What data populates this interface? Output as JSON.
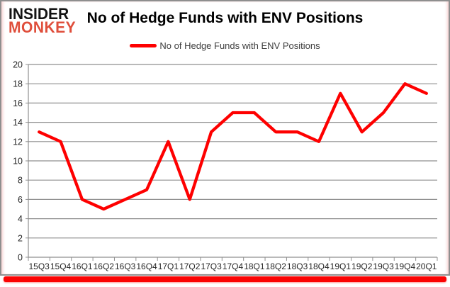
{
  "brand": {
    "line1": "INSIDER",
    "line2": "MONKEY"
  },
  "title": "No of Hedge Funds with ENV Positions",
  "legend": {
    "label": "No of Hedge Funds with ENV Positions",
    "color": "#fe0000"
  },
  "colors": {
    "line": "#fe0000",
    "grid": "#8f8f8f",
    "axis": "#8f8f8f",
    "tick_text": "#262626",
    "title_text": "#000000",
    "logo_black": "#141414",
    "logo_red": "#df4e3b",
    "bottom_bar": "#fb0303"
  },
  "chart_data": {
    "type": "line",
    "title": "No of Hedge Funds with ENV Positions",
    "categories": [
      "15Q3",
      "15Q4",
      "16Q1",
      "16Q2",
      "16Q3",
      "16Q4",
      "17Q1",
      "17Q2",
      "17Q3",
      "17Q4",
      "18Q1",
      "18Q2",
      "18Q3",
      "18Q4",
      "19Q1",
      "19Q2",
      "19Q3",
      "19Q4",
      "20Q1"
    ],
    "series": [
      {
        "name": "No of Hedge Funds with ENV Positions",
        "color": "#fe0000",
        "values": [
          13,
          12,
          6,
          5,
          6,
          7,
          12,
          6,
          13,
          15,
          15,
          13,
          13,
          12,
          17,
          13,
          15,
          18,
          17
        ]
      }
    ],
    "xlabel": "",
    "ylabel": "",
    "ylim": [
      0,
      20
    ],
    "ytick_step": 2,
    "grid": true,
    "legend_position": "top"
  }
}
